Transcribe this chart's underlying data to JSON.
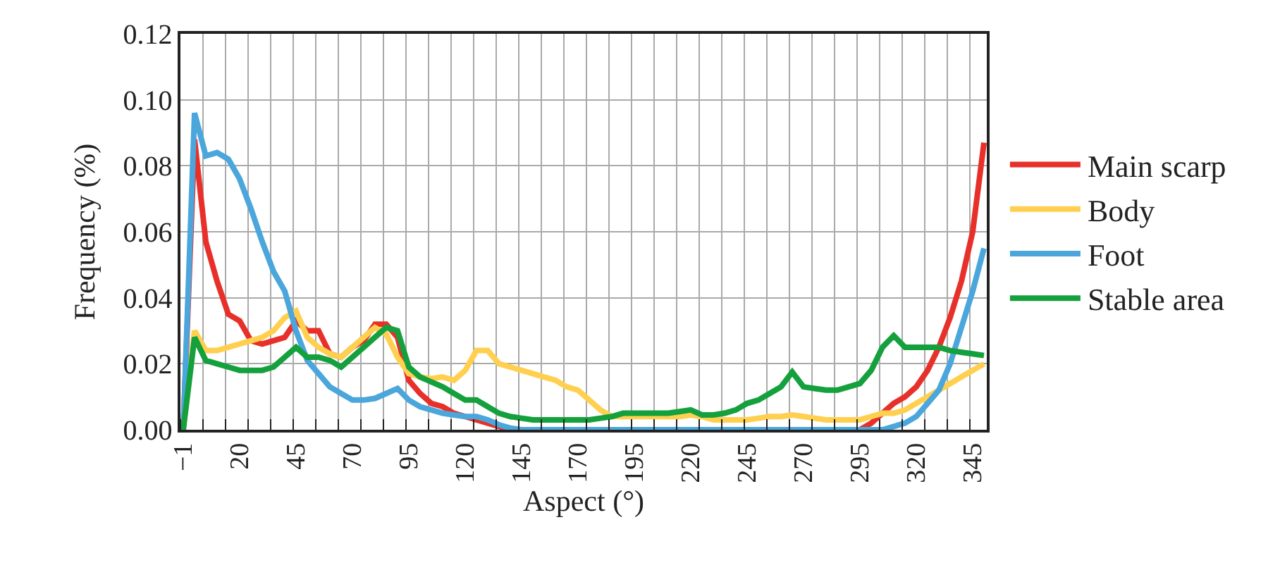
{
  "chart_data": {
    "type": "line",
    "xlabel": "Aspect (°)",
    "ylabel": "Frequency (%)",
    "categories": [
      "−1",
      null,
      null,
      null,
      null,
      "20",
      null,
      null,
      null,
      null,
      "45",
      null,
      null,
      null,
      null,
      "70",
      null,
      null,
      null,
      null,
      "95",
      null,
      null,
      null,
      null,
      "120",
      null,
      null,
      null,
      null,
      "145",
      null,
      null,
      null,
      null,
      "170",
      null,
      null,
      null,
      null,
      "195",
      null,
      null,
      null,
      null,
      "220",
      null,
      null,
      null,
      null,
      "245",
      null,
      null,
      null,
      null,
      "270",
      null,
      null,
      null,
      null,
      "295",
      null,
      null,
      null,
      null,
      "320",
      null,
      null,
      null,
      null,
      "345",
      null
    ],
    "ylim": [
      0,
      0.12
    ],
    "yticks": [
      {
        "value": 0,
        "label": "0.00"
      },
      {
        "value": 0.02,
        "label": "0.02"
      },
      {
        "value": 0.04,
        "label": "0.04"
      },
      {
        "value": 0.06,
        "label": "0.06"
      },
      {
        "value": 0.08,
        "label": "0.08"
      },
      {
        "value": 0.1,
        "label": "0.10"
      },
      {
        "value": 0.12,
        "label": "0.12"
      }
    ],
    "grid": true,
    "legend": "right",
    "marker": "none",
    "line_style": "solid",
    "series": [
      {
        "name": "Main scarp",
        "color": "#e8302a",
        "values": [
          0,
          0.088,
          0.057,
          0.045,
          0.035,
          0.033,
          0.027,
          0.026,
          0.027,
          0.028,
          0.033,
          0.03,
          0.03,
          0.023,
          0.022,
          0.025,
          0.027,
          0.032,
          0.032,
          0.028,
          0.015,
          0.011,
          0.008,
          0.007,
          0.005,
          0.004,
          0.003,
          0.002,
          0.001,
          0,
          0,
          0,
          0,
          0,
          0,
          0,
          0,
          0,
          0,
          0,
          0,
          0,
          0,
          0,
          0,
          0,
          0,
          0,
          0,
          0,
          0,
          0,
          0,
          0,
          0,
          0,
          0,
          0,
          0,
          0,
          0,
          0.002,
          0.005,
          0.008,
          0.01,
          0.013,
          0.018,
          0.025,
          0.034,
          0.045,
          0.06,
          0.087
        ]
      },
      {
        "name": "Body",
        "color": "#ffd04f",
        "values": [
          0,
          0.03,
          0.024,
          0.024,
          0.025,
          0.026,
          0.027,
          0.028,
          0.03,
          0.034,
          0.036,
          0.028,
          0.025,
          0.023,
          0.022,
          0.025,
          0.028,
          0.031,
          0.029,
          0.022,
          0.017,
          0.016,
          0.0155,
          0.016,
          0.015,
          0.018,
          0.024,
          0.024,
          0.02,
          0.019,
          0.018,
          0.017,
          0.016,
          0.015,
          0.013,
          0.012,
          0.009,
          0.006,
          0.004,
          0.004,
          0.004,
          0.004,
          0.004,
          0.004,
          0.004,
          0.0045,
          0.004,
          0.003,
          0.003,
          0.003,
          0.003,
          0.0035,
          0.004,
          0.004,
          0.0045,
          0.004,
          0.0035,
          0.003,
          0.003,
          0.003,
          0.003,
          0.004,
          0.005,
          0.005,
          0.006,
          0.008,
          0.01,
          0.012,
          0.014,
          0.016,
          0.018,
          0.02
        ]
      },
      {
        "name": "Foot",
        "color": "#4ba6dc",
        "values": [
          0,
          0.096,
          0.083,
          0.084,
          0.082,
          0.076,
          0.067,
          0.057,
          0.048,
          0.042,
          0.03,
          0.021,
          0.017,
          0.013,
          0.011,
          0.009,
          0.009,
          0.0095,
          0.011,
          0.0125,
          0.009,
          0.007,
          0.006,
          0.005,
          0.0045,
          0.004,
          0.004,
          0.003,
          0.0015,
          0.0005,
          0,
          0,
          0,
          0,
          0,
          0,
          0,
          0,
          0,
          0,
          0,
          0,
          0,
          0,
          0,
          0,
          0,
          0,
          0,
          0,
          0,
          0,
          0,
          0,
          0,
          0,
          0,
          0,
          0,
          0,
          0,
          0,
          0,
          0.001,
          0.002,
          0.004,
          0.008,
          0.012,
          0.02,
          0.031,
          0.042,
          0.055
        ]
      },
      {
        "name": "Stable area",
        "color": "#14a03c",
        "values": [
          0,
          0.028,
          0.021,
          0.02,
          0.019,
          0.018,
          0.018,
          0.018,
          0.019,
          0.022,
          0.025,
          0.022,
          0.022,
          0.021,
          0.019,
          0.022,
          0.025,
          0.028,
          0.031,
          0.03,
          0.019,
          0.016,
          0.0145,
          0.013,
          0.011,
          0.009,
          0.009,
          0.007,
          0.005,
          0.004,
          0.0035,
          0.003,
          0.003,
          0.003,
          0.003,
          0.003,
          0.003,
          0.0035,
          0.004,
          0.005,
          0.005,
          0.005,
          0.005,
          0.005,
          0.0055,
          0.006,
          0.0045,
          0.0045,
          0.005,
          0.006,
          0.008,
          0.009,
          0.011,
          0.013,
          0.0175,
          0.013,
          0.0125,
          0.012,
          0.012,
          0.013,
          0.014,
          0.018,
          0.025,
          0.0285,
          0.025,
          0.025,
          0.025,
          0.025,
          0.024,
          0.0235,
          0.023,
          0.0225
        ]
      }
    ]
  }
}
